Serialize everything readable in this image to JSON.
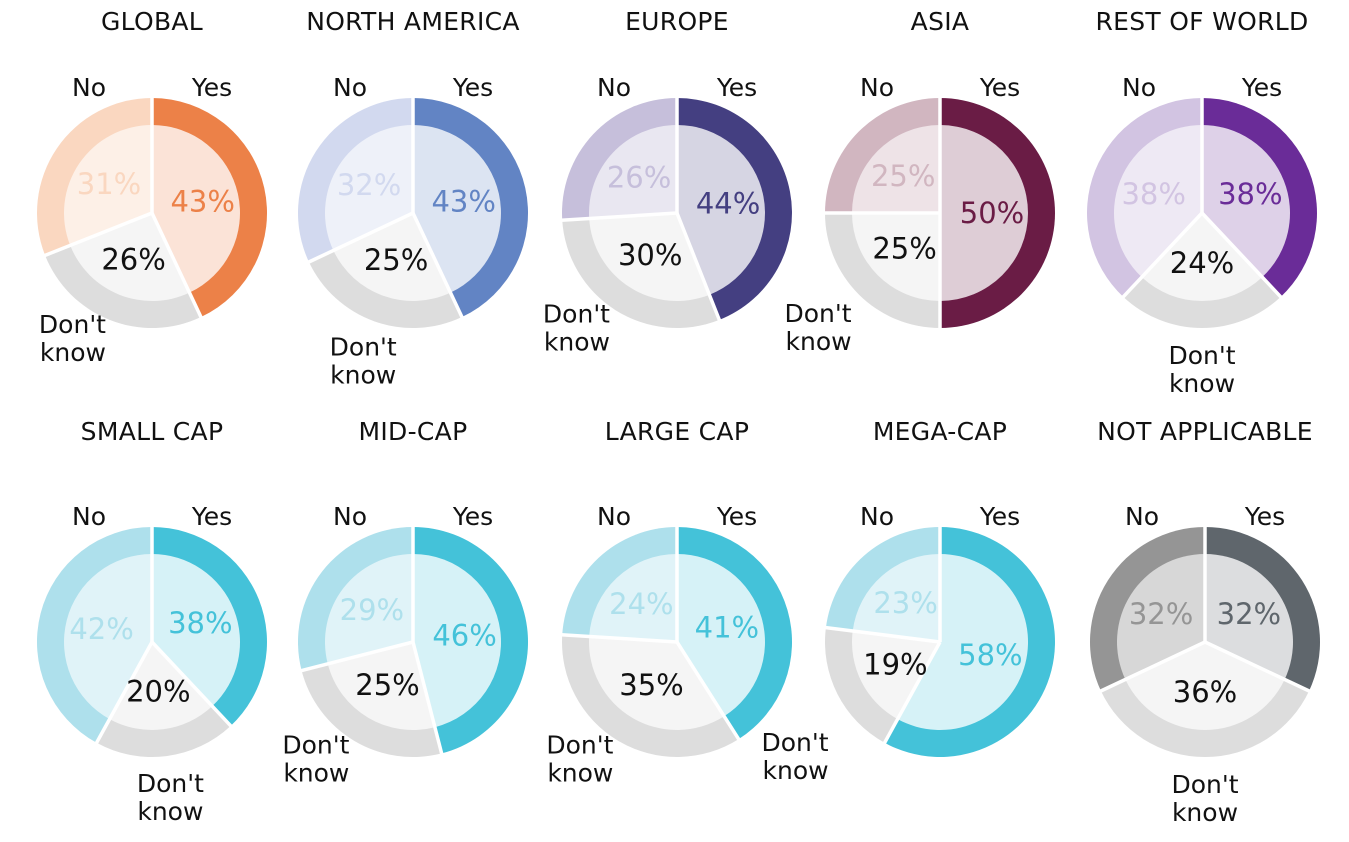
{
  "chart_data": [
    {
      "type": "pie",
      "title": "GLOBAL",
      "categories": [
        "Yes",
        "No",
        "Don't know"
      ],
      "values": [
        43,
        31,
        26
      ],
      "labels": [
        "43%",
        "31%",
        "26%"
      ],
      "colors": {
        "yes": "#EC8148",
        "no": "#FAD7C0",
        "dont_know": "#DDDDDD"
      }
    },
    {
      "type": "pie",
      "title": "NORTH AMERICA",
      "categories": [
        "Yes",
        "No",
        "Don't know"
      ],
      "values": [
        43,
        32,
        25
      ],
      "labels": [
        "43%",
        "32%",
        "25%"
      ],
      "colors": {
        "yes": "#6284C4",
        "no": "#D2D9EF",
        "dont_know": "#DDDDDD"
      }
    },
    {
      "type": "pie",
      "title": "EUROPE",
      "categories": [
        "Yes",
        "No",
        "Don't know"
      ],
      "values": [
        44,
        26,
        30
      ],
      "labels": [
        "44%",
        "26%",
        "30%"
      ],
      "colors": {
        "yes": "#443F81",
        "no": "#C6BFDB",
        "dont_know": "#DDDDDD"
      }
    },
    {
      "type": "pie",
      "title": "ASIA",
      "categories": [
        "Yes",
        "No",
        "Don't know"
      ],
      "values": [
        50,
        25,
        25
      ],
      "labels": [
        "50%",
        "25%",
        "25%"
      ],
      "colors": {
        "yes": "#6A1C45",
        "no": "#D1B6C0",
        "dont_know": "#DDDDDD"
      }
    },
    {
      "type": "pie",
      "title": "REST OF WORLD",
      "categories": [
        "Yes",
        "No",
        "Don't know"
      ],
      "values": [
        38,
        38,
        24
      ],
      "labels": [
        "38%",
        "38%",
        "24%"
      ],
      "colors": {
        "yes": "#6A2C98",
        "no": "#D2C4E2",
        "dont_know": "#DDDDDD"
      }
    },
    {
      "type": "pie",
      "title": "SMALL CAP",
      "categories": [
        "Yes",
        "No",
        "Don't know"
      ],
      "values": [
        38,
        42,
        20
      ],
      "labels": [
        "38%",
        "42%",
        "20%"
      ],
      "colors": {
        "yes": "#44C2D9",
        "no": "#AEE0EC",
        "dont_know": "#DDDDDD"
      }
    },
    {
      "type": "pie",
      "title": "MID-CAP",
      "categories": [
        "Yes",
        "No",
        "Don't know"
      ],
      "values": [
        46,
        29,
        25
      ],
      "labels": [
        "46%",
        "29%",
        "25%"
      ],
      "colors": {
        "yes": "#44C2D9",
        "no": "#AEE0EC",
        "dont_know": "#DDDDDD"
      }
    },
    {
      "type": "pie",
      "title": "LARGE CAP",
      "categories": [
        "Yes",
        "No",
        "Don't know"
      ],
      "values": [
        41,
        24,
        35
      ],
      "labels": [
        "41%",
        "24%",
        "35%"
      ],
      "colors": {
        "yes": "#44C2D9",
        "no": "#AEE0EC",
        "dont_know": "#DDDDDD"
      }
    },
    {
      "type": "pie",
      "title": "MEGA-CAP",
      "categories": [
        "Yes",
        "No",
        "Don't know"
      ],
      "values": [
        58,
        23,
        19
      ],
      "labels": [
        "58%",
        "23%",
        "19%"
      ],
      "colors": {
        "yes": "#44C2D9",
        "no": "#AEE0EC",
        "dont_know": "#DDDDDD"
      }
    },
    {
      "type": "pie",
      "title": "NOT APPLICABLE",
      "categories": [
        "Yes",
        "No",
        "Don't know"
      ],
      "values": [
        32,
        32,
        36
      ],
      "labels": [
        "32%",
        "32%",
        "36%"
      ],
      "colors": {
        "yes": "#5F666C",
        "no": "#959595",
        "dont_know": "#DDDDDD"
      }
    }
  ],
  "category_labels": {
    "yes": "Yes",
    "no": "No",
    "dont_know_line1": "Don't",
    "dont_know_line2": "know"
  },
  "colors": {
    "label_text": "#111111",
    "inner_fill": "#FFFFFF",
    "dont_know_text": "#111111"
  }
}
